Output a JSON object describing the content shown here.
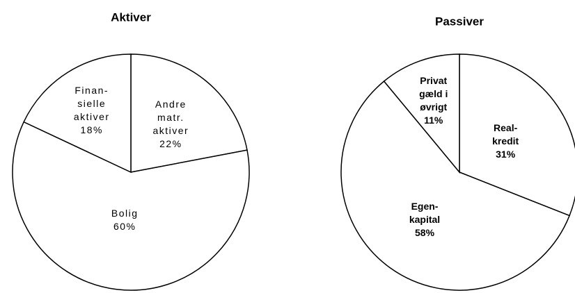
{
  "chart_data": [
    {
      "type": "pie",
      "title": "Aktiver",
      "categories": [
        "Andre\nmatr.\naktiver",
        "Bolig",
        "Finan-\nsielle\naktiver"
      ],
      "values": [
        22,
        60,
        18
      ],
      "value_labels": [
        "22%",
        "60%",
        "18%"
      ],
      "color": "#ffffff"
    },
    {
      "type": "pie",
      "title": "Passiver",
      "categories": [
        "Real-\nkredit",
        "Egen-\nkapital",
        "Privat\ngæld i\nøvrigt"
      ],
      "values": [
        31,
        58,
        11
      ],
      "value_labels": [
        "31%",
        "58%",
        "11%"
      ],
      "color": "#ffffff"
    }
  ]
}
